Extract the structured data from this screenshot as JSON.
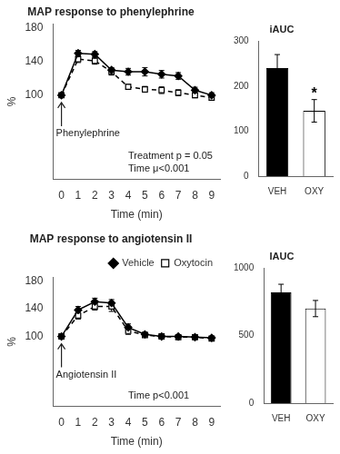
{
  "chart_data": [
    {
      "type": "line",
      "title": "MAP response to phenylephrine",
      "x_label": "Time (min)",
      "y_label": "%",
      "x": [
        0,
        1,
        2,
        3,
        4,
        5,
        6,
        7,
        8,
        9
      ],
      "xlim": [
        -0.5,
        9.5
      ],
      "xticks": [
        0,
        1,
        2,
        3,
        4,
        5,
        6,
        7,
        8,
        9
      ],
      "ylim": [
        0,
        185
      ],
      "yticks": [
        100,
        140,
        180
      ],
      "grid": false,
      "series": [
        {
          "color": "black",
          "marker": "diamond",
          "line_style": "solid",
          "values": [
            100,
            150,
            149,
            130,
            128,
            128,
            125,
            123,
            106,
            100
          ],
          "errors": [
            0,
            3.5,
            3,
            3,
            4,
            5,
            4.5,
            4,
            3.5,
            3
          ]
        },
        {
          "color": "black",
          "marker": "open square",
          "line_style": "dashed",
          "values": [
            100,
            143,
            141,
            128,
            110,
            107,
            106,
            103,
            100,
            97
          ],
          "errors": [
            0,
            4,
            4,
            4,
            3,
            3.5,
            4,
            3.5,
            3,
            3
          ]
        }
      ],
      "annotations": [
        {
          "text": "Phenylephrine",
          "x": 0,
          "arrow": true
        },
        {
          "text": "Treatment p = 0.05"
        },
        {
          "text": "Time μ<0.001"
        }
      ]
    },
    {
      "type": "bar",
      "title": "iAUC",
      "categories": [
        "VEH",
        "OXY"
      ],
      "values": [
        240,
        145
      ],
      "errors": [
        30,
        25
      ],
      "colors": [
        "black",
        "white"
      ],
      "ylim": [
        0,
        300
      ],
      "yticks": [
        0,
        100,
        200,
        300
      ],
      "grid": false,
      "annotations": [
        {
          "text": "*",
          "category": "OXY"
        }
      ]
    },
    {
      "type": "line",
      "title": "MAP response to angiotensin II",
      "x_label": "Time (min)",
      "y_label": "%",
      "x": [
        0,
        1,
        2,
        3,
        4,
        5,
        6,
        7,
        8,
        9
      ],
      "xlim": [
        -0.5,
        9.5
      ],
      "xticks": [
        0,
        1,
        2,
        3,
        4,
        5,
        6,
        7,
        8,
        9
      ],
      "ylim": [
        0,
        185
      ],
      "yticks": [
        100,
        140,
        180
      ],
      "grid": false,
      "legend": "upper right",
      "series": [
        {
          "name": "Vehicle",
          "color": "black",
          "marker": "diamond",
          "line_style": "solid",
          "values": [
            100,
            138,
            150,
            148,
            113,
            103,
            100,
            100,
            99,
            98
          ],
          "errors": [
            0,
            5,
            5,
            5,
            5,
            3,
            2.5,
            2,
            2,
            2
          ]
        },
        {
          "name": "Oxytocin",
          "color": "black",
          "marker": "open square",
          "line_style": "dashed",
          "values": [
            100,
            130,
            143,
            143,
            108,
            102,
            100,
            99,
            99,
            97
          ],
          "errors": [
            0,
            5,
            5,
            7,
            5,
            3,
            2.5,
            2,
            2,
            2
          ]
        }
      ],
      "annotations": [
        {
          "text": "Angiotensin II",
          "x": 0,
          "arrow": true
        },
        {
          "text": "Time p<0.001"
        }
      ]
    },
    {
      "type": "bar",
      "title": "IAUC",
      "categories": [
        "VEH",
        "OXY"
      ],
      "values": [
        820,
        700
      ],
      "errors": [
        60,
        60
      ],
      "colors": [
        "black",
        "white"
      ],
      "ylim": [
        0,
        1000
      ],
      "yticks": [
        0,
        500,
        1000
      ],
      "grid": false
    }
  ]
}
